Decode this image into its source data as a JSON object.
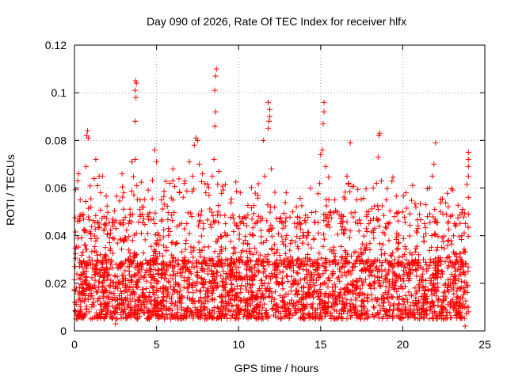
{
  "chart_data": {
    "type": "scatter",
    "title": "Day 090 of 2026, Rate Of TEC Index for receiver hlfx",
    "xlabel": "GPS time / hours",
    "ylabel": "ROTI / TECUs",
    "xlim": [
      0,
      25
    ],
    "ylim": [
      0,
      0.12
    ],
    "x_ticks": [
      0,
      5,
      10,
      15,
      20,
      25
    ],
    "x_tick_labels": [
      "0",
      "5",
      "10",
      "15",
      "20",
      "25"
    ],
    "y_ticks": [
      0,
      0.02,
      0.04,
      0.06,
      0.08,
      0.1,
      0.12
    ],
    "y_tick_labels": [
      "0",
      "0.02",
      "0.04",
      "0.06",
      "0.08",
      "0.1",
      "0.12"
    ],
    "grid": true,
    "marker": "+",
    "marker_color": "#ff0000",
    "series": [
      {
        "name": "ROTI",
        "points": [
          [
            0.1,
            0.012
          ],
          [
            0.2,
            0.063
          ],
          [
            0.25,
            0.066
          ],
          [
            0.3,
            0.047
          ],
          [
            0.35,
            0.055
          ],
          [
            0.5,
            0.018
          ],
          [
            0.6,
            0.042
          ],
          [
            0.7,
            0.069
          ],
          [
            0.75,
            0.082
          ],
          [
            0.8,
            0.084
          ],
          [
            0.85,
            0.081
          ],
          [
            1.0,
            0.052
          ],
          [
            1.2,
            0.064
          ],
          [
            1.3,
            0.072
          ],
          [
            1.4,
            0.061
          ],
          [
            1.6,
            0.058
          ],
          [
            1.7,
            0.065
          ],
          [
            1.8,
            0.048
          ],
          [
            2.2,
            0.041
          ],
          [
            2.5,
            0.003
          ],
          [
            2.6,
            0.005
          ],
          [
            2.9,
            0.066
          ],
          [
            3.0,
            0.058
          ],
          [
            3.3,
            0.045
          ],
          [
            3.5,
            0.071
          ],
          [
            3.7,
            0.072
          ],
          [
            3.7,
            0.088
          ],
          [
            3.75,
            0.098
          ],
          [
            3.7,
            0.101
          ],
          [
            3.72,
            0.105
          ],
          [
            3.78,
            0.104
          ],
          [
            3.8,
            0.061
          ],
          [
            4.0,
            0.055
          ],
          [
            4.2,
            0.052
          ],
          [
            4.5,
            0.048
          ],
          [
            4.9,
            0.076
          ],
          [
            5.0,
            0.071
          ],
          [
            5.3,
            0.055
          ],
          [
            5.8,
            0.062
          ],
          [
            6.0,
            0.068
          ],
          [
            6.4,
            0.058
          ],
          [
            6.7,
            0.062
          ],
          [
            7.0,
            0.071
          ],
          [
            7.2,
            0.065
          ],
          [
            7.3,
            0.078
          ],
          [
            7.4,
            0.081
          ],
          [
            7.5,
            0.08
          ],
          [
            7.6,
            0.07
          ],
          [
            7.8,
            0.066
          ],
          [
            8.0,
            0.058
          ],
          [
            8.2,
            0.057
          ],
          [
            8.4,
            0.065
          ],
          [
            8.5,
            0.072
          ],
          [
            8.55,
            0.086
          ],
          [
            8.6,
            0.092
          ],
          [
            8.55,
            0.101
          ],
          [
            8.6,
            0.107
          ],
          [
            8.65,
            0.11
          ],
          [
            8.8,
            0.067
          ],
          [
            9.2,
            0.045
          ],
          [
            9.7,
            0.035
          ],
          [
            10.0,
            0.043
          ],
          [
            10.4,
            0.038
          ],
          [
            10.9,
            0.04
          ],
          [
            11.0,
            0.045
          ],
          [
            11.5,
            0.08
          ],
          [
            11.8,
            0.085
          ],
          [
            11.85,
            0.088
          ],
          [
            11.9,
            0.09
          ],
          [
            11.8,
            0.096
          ],
          [
            11.9,
            0.093
          ],
          [
            12.0,
            0.068
          ],
          [
            12.2,
            0.052
          ],
          [
            12.5,
            0.047
          ],
          [
            12.9,
            0.058
          ],
          [
            13.3,
            0.05
          ],
          [
            13.8,
            0.045
          ],
          [
            14.2,
            0.04
          ],
          [
            14.7,
            0.05
          ],
          [
            15.0,
            0.074
          ],
          [
            15.1,
            0.076
          ],
          [
            15.15,
            0.087
          ],
          [
            15.2,
            0.092
          ],
          [
            15.2,
            0.096
          ],
          [
            15.3,
            0.069
          ],
          [
            15.5,
            0.055
          ],
          [
            16.0,
            0.05
          ],
          [
            16.3,
            0.046
          ],
          [
            16.6,
            0.065
          ],
          [
            16.8,
            0.079
          ],
          [
            16.7,
            0.062
          ],
          [
            17.2,
            0.055
          ],
          [
            17.8,
            0.048
          ],
          [
            18.2,
            0.06
          ],
          [
            18.4,
            0.062
          ],
          [
            18.5,
            0.073
          ],
          [
            18.55,
            0.082
          ],
          [
            18.6,
            0.083
          ],
          [
            18.7,
            0.063
          ],
          [
            19.0,
            0.055
          ],
          [
            19.5,
            0.048
          ],
          [
            20.0,
            0.05
          ],
          [
            20.2,
            0.058
          ],
          [
            20.8,
            0.052
          ],
          [
            21.5,
            0.048
          ],
          [
            21.8,
            0.065
          ],
          [
            21.9,
            0.07
          ],
          [
            22.0,
            0.079
          ],
          [
            22.3,
            0.05
          ],
          [
            22.8,
            0.038
          ],
          [
            23.2,
            0.044
          ],
          [
            23.6,
            0.04
          ],
          [
            24.0,
            0.049
          ],
          [
            24.0,
            0.056
          ],
          [
            24.0,
            0.065
          ],
          [
            24.0,
            0.069
          ],
          [
            24.0,
            0.072
          ],
          [
            24.0,
            0.075
          ],
          [
            23.8,
            0.002
          ],
          [
            24.0,
            0.008
          ]
        ],
        "dense_band": {
          "x_range": [
            0,
            24
          ],
          "typical_range": [
            0.005,
            0.03
          ],
          "description": "thousands of overlapping + markers forming a continuous red band"
        }
      }
    ]
  }
}
